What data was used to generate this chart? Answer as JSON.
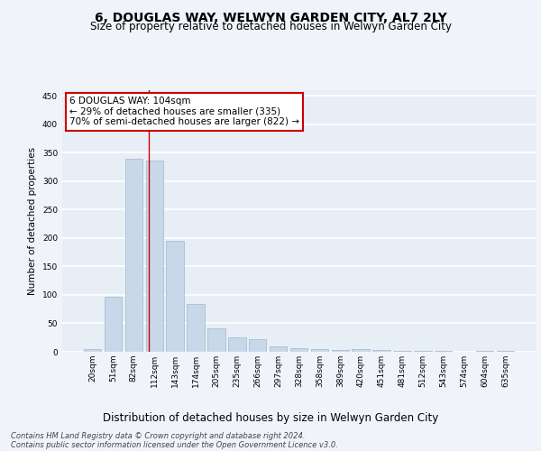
{
  "title": "6, DOUGLAS WAY, WELWYN GARDEN CITY, AL7 2LY",
  "subtitle": "Size of property relative to detached houses in Welwyn Garden City",
  "xlabel": "Distribution of detached houses by size in Welwyn Garden City",
  "ylabel": "Number of detached properties",
  "bar_labels": [
    "20sqm",
    "51sqm",
    "82sqm",
    "112sqm",
    "143sqm",
    "174sqm",
    "205sqm",
    "235sqm",
    "266sqm",
    "297sqm",
    "328sqm",
    "358sqm",
    "389sqm",
    "420sqm",
    "451sqm",
    "481sqm",
    "512sqm",
    "543sqm",
    "574sqm",
    "604sqm",
    "635sqm"
  ],
  "bar_values": [
    5,
    97,
    340,
    337,
    195,
    84,
    42,
    25,
    23,
    10,
    7,
    5,
    3,
    5,
    3,
    1,
    1,
    1,
    0,
    1,
    1
  ],
  "bar_color": "#c8d8e8",
  "bar_edge_color": "#a0b8cc",
  "background_color": "#e8eef5",
  "fig_background_color": "#f0f4fa",
  "grid_color": "#ffffff",
  "red_line_x": 2.73,
  "annotation_text": "6 DOUGLAS WAY: 104sqm\n← 29% of detached houses are smaller (335)\n70% of semi-detached houses are larger (822) →",
  "annotation_box_color": "#ffffff",
  "annotation_border_color": "#cc0000",
  "footer_line1": "Contains HM Land Registry data © Crown copyright and database right 2024.",
  "footer_line2": "Contains public sector information licensed under the Open Government Licence v3.0.",
  "ylim": [
    0,
    460
  ],
  "yticks": [
    0,
    50,
    100,
    150,
    200,
    250,
    300,
    350,
    400,
    450
  ],
  "title_fontsize": 10,
  "subtitle_fontsize": 8.5,
  "ylabel_fontsize": 7.5,
  "xlabel_fontsize": 8.5,
  "tick_fontsize": 6.5,
  "annot_fontsize": 7.5,
  "footer_fontsize": 6.0
}
